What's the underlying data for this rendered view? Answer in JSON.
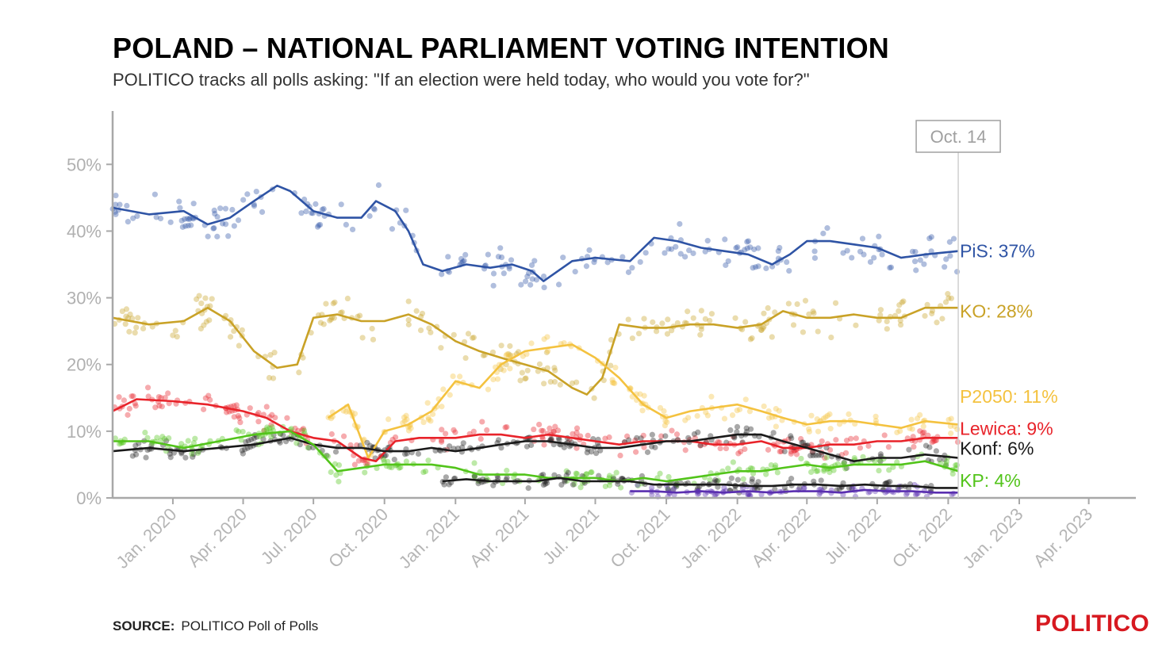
{
  "title": "POLAND – NATIONAL PARLIAMENT VOTING INTENTION",
  "subtitle": "POLITICO tracks all polls asking: \"If an election were held today, who would you vote for?\"",
  "source_label": "SOURCE:",
  "source_text": "POLITICO Poll of Polls",
  "brand": "POLITICO",
  "chart_data": {
    "type": "line",
    "xlabel": "",
    "ylabel": "",
    "ylim": [
      0,
      58
    ],
    "y_ticks": [
      0,
      10,
      20,
      30,
      40,
      50
    ],
    "y_tick_labels": [
      "0%",
      "10%",
      "20%",
      "30%",
      "40%",
      "50%"
    ],
    "x_range": [
      "2019-10-15",
      "2023-06-01"
    ],
    "x_tick_labels": [
      "Jan. 2020",
      "Apr. 2020",
      "Jul. 2020",
      "Oct. 2020",
      "Jan. 2021",
      "Apr. 2021",
      "Jul. 2021",
      "Oct. 2021",
      "Jan. 2022",
      "Apr. 2022",
      "Jul. 2022",
      "Oct. 2022",
      "Jan. 2023",
      "Apr. 2023"
    ],
    "x_tick_dates": [
      "2020-01-01",
      "2020-04-01",
      "2020-07-01",
      "2020-10-01",
      "2021-01-01",
      "2021-04-01",
      "2021-07-01",
      "2021-10-01",
      "2022-01-01",
      "2022-04-01",
      "2022-07-01",
      "2022-10-01",
      "2023-01-01",
      "2023-04-01"
    ],
    "marker_label": "Oct. 14",
    "marker_date": "2022-10-14",
    "grid": false,
    "series": [
      {
        "name": "PiS",
        "end_label": "PiS: 37%",
        "color": "#2f54a5",
        "x": [
          "2019-10-15",
          "2019-12-01",
          "2020-01-15",
          "2020-02-15",
          "2020-03-15",
          "2020-04-15",
          "2020-05-15",
          "2020-06-01",
          "2020-07-01",
          "2020-08-01",
          "2020-09-01",
          "2020-09-20",
          "2020-10-15",
          "2020-11-01",
          "2020-11-20",
          "2020-12-15",
          "2021-01-15",
          "2021-02-15",
          "2021-03-15",
          "2021-04-10",
          "2021-04-25",
          "2021-06-01",
          "2021-07-01",
          "2021-08-15",
          "2021-09-15",
          "2021-10-15",
          "2021-11-15",
          "2021-12-15",
          "2022-01-15",
          "2022-02-15",
          "2022-03-10",
          "2022-04-01",
          "2022-05-01",
          "2022-06-01",
          "2022-07-01",
          "2022-08-01",
          "2022-09-01",
          "2022-10-14"
        ],
        "values": [
          43.5,
          42.5,
          43.0,
          41.0,
          42.0,
          44.5,
          46.8,
          46.0,
          43.0,
          42.0,
          42.0,
          44.5,
          43.0,
          40.0,
          35.0,
          34.0,
          35.0,
          34.5,
          35.0,
          34.0,
          32.5,
          35.5,
          36.0,
          35.5,
          39.0,
          38.5,
          37.5,
          37.0,
          36.5,
          35.0,
          36.5,
          38.5,
          38.5,
          38.0,
          37.5,
          36.0,
          36.5,
          37.0
        ]
      },
      {
        "name": "KO",
        "end_label": "KO: 28%",
        "color": "#c9a227",
        "x": [
          "2019-10-15",
          "2019-12-01",
          "2020-01-15",
          "2020-02-15",
          "2020-03-15",
          "2020-04-15",
          "2020-05-15",
          "2020-06-10",
          "2020-07-01",
          "2020-08-01",
          "2020-09-01",
          "2020-10-01",
          "2020-11-01",
          "2020-12-01",
          "2021-01-01",
          "2021-02-01",
          "2021-03-01",
          "2021-04-01",
          "2021-05-01",
          "2021-06-01",
          "2021-06-20",
          "2021-07-10",
          "2021-08-01",
          "2021-09-01",
          "2021-10-01",
          "2021-11-01",
          "2021-12-01",
          "2022-01-01",
          "2022-02-01",
          "2022-03-01",
          "2022-04-01",
          "2022-05-01",
          "2022-06-01",
          "2022-07-01",
          "2022-08-01",
          "2022-09-01",
          "2022-10-14"
        ],
        "values": [
          27.0,
          26.0,
          26.5,
          28.5,
          26.5,
          22.0,
          19.5,
          20.0,
          27.0,
          27.5,
          26.5,
          26.5,
          27.5,
          26.0,
          23.5,
          22.0,
          21.0,
          20.0,
          19.0,
          16.5,
          15.5,
          18.0,
          26.0,
          25.5,
          25.5,
          26.0,
          26.0,
          25.5,
          26.0,
          28.0,
          27.0,
          27.0,
          27.5,
          27.0,
          27.0,
          28.5,
          28.5
        ]
      },
      {
        "name": "P2050",
        "end_label": "P2050: 11%",
        "color": "#f4c23f",
        "x": [
          "2020-07-20",
          "2020-08-15",
          "2020-09-10",
          "2020-10-01",
          "2020-11-01",
          "2020-12-01",
          "2021-01-01",
          "2021-02-01",
          "2021-03-01",
          "2021-04-01",
          "2021-05-01",
          "2021-06-01",
          "2021-07-01",
          "2021-08-01",
          "2021-09-01",
          "2021-10-01",
          "2021-11-01",
          "2021-12-01",
          "2022-01-01",
          "2022-02-01",
          "2022-03-01",
          "2022-04-01",
          "2022-05-01",
          "2022-06-01",
          "2022-07-01",
          "2022-08-01",
          "2022-09-01",
          "2022-10-14"
        ],
        "values": [
          12.0,
          14.0,
          6.0,
          10.0,
          11.0,
          13.0,
          17.5,
          16.5,
          20.0,
          22.0,
          22.5,
          23.0,
          21.0,
          18.0,
          14.0,
          12.0,
          13.0,
          13.5,
          14.0,
          13.0,
          12.0,
          11.0,
          11.5,
          11.5,
          11.0,
          10.5,
          11.5,
          11.0
        ]
      },
      {
        "name": "Lewica",
        "end_label": "Lewica: 9%",
        "color": "#e8232a",
        "x": [
          "2019-10-15",
          "2019-11-15",
          "2020-01-01",
          "2020-02-15",
          "2020-04-01",
          "2020-05-01",
          "2020-06-01",
          "2020-07-01",
          "2020-08-01",
          "2020-09-01",
          "2020-09-20",
          "2020-10-15",
          "2020-11-15",
          "2021-01-01",
          "2021-02-01",
          "2021-03-01",
          "2021-04-01",
          "2021-05-01",
          "2021-06-01",
          "2021-07-01",
          "2021-08-01",
          "2021-09-01",
          "2021-10-01",
          "2021-11-01",
          "2021-12-01",
          "2022-01-01",
          "2022-02-01",
          "2022-03-01",
          "2022-04-01",
          "2022-05-01",
          "2022-06-01",
          "2022-07-01",
          "2022-08-01",
          "2022-09-01",
          "2022-10-14"
        ],
        "values": [
          13.0,
          14.8,
          14.5,
          14.0,
          13.0,
          12.0,
          10.0,
          9.0,
          8.5,
          6.0,
          5.5,
          8.5,
          9.0,
          9.0,
          9.5,
          9.5,
          9.0,
          9.5,
          9.0,
          8.5,
          8.0,
          8.5,
          8.5,
          8.5,
          8.0,
          8.0,
          8.5,
          7.5,
          7.5,
          8.0,
          8.0,
          8.5,
          8.5,
          9.0,
          9.0
        ]
      },
      {
        "name": "Konf",
        "end_label": "Konf: 6%",
        "color": "#1a1a1a",
        "x": [
          "2019-10-15",
          "2019-12-01",
          "2020-01-15",
          "2020-03-01",
          "2020-04-15",
          "2020-06-01",
          "2020-07-01",
          "2020-08-01",
          "2020-09-01",
          "2020-10-01",
          "2020-11-01",
          "2020-12-01",
          "2021-01-01",
          "2021-02-01",
          "2021-03-01",
          "2021-04-01",
          "2021-05-01",
          "2021-06-01",
          "2021-07-01",
          "2021-08-01",
          "2021-09-01",
          "2021-10-01",
          "2021-11-01",
          "2021-12-01",
          "2022-01-01",
          "2022-02-01",
          "2022-03-01",
          "2022-04-01",
          "2022-05-01",
          "2022-06-01",
          "2022-07-01",
          "2022-08-01",
          "2022-09-01",
          "2022-10-14"
        ],
        "values": [
          7.0,
          7.5,
          7.0,
          7.5,
          8.0,
          9.0,
          8.0,
          7.5,
          7.5,
          7.0,
          7.0,
          7.5,
          7.0,
          7.5,
          8.0,
          8.5,
          8.5,
          8.0,
          7.5,
          7.5,
          8.0,
          8.5,
          8.5,
          9.0,
          9.5,
          9.5,
          8.5,
          7.5,
          6.5,
          5.5,
          6.0,
          6.0,
          6.5,
          6.0
        ]
      },
      {
        "name": "KP",
        "end_label": "KP: 4%",
        "color": "#52c41a",
        "x": [
          "2019-10-15",
          "2019-12-01",
          "2020-01-15",
          "2020-03-01",
          "2020-04-15",
          "2020-06-01",
          "2020-07-01",
          "2020-08-01",
          "2020-09-01",
          "2020-10-01",
          "2020-11-01",
          "2020-12-01",
          "2021-01-01",
          "2021-02-01",
          "2021-03-01",
          "2021-04-01",
          "2021-05-01",
          "2021-06-01",
          "2021-07-01",
          "2021-08-01",
          "2021-09-01",
          "2021-10-01",
          "2021-11-01",
          "2021-12-01",
          "2022-01-01",
          "2022-02-01",
          "2022-03-01",
          "2022-04-01",
          "2022-05-01",
          "2022-06-01",
          "2022-07-01",
          "2022-08-01",
          "2022-09-01",
          "2022-10-14"
        ],
        "values": [
          8.5,
          8.5,
          7.5,
          8.5,
          9.5,
          10.0,
          8.0,
          4.0,
          4.5,
          5.0,
          5.0,
          5.0,
          4.5,
          3.5,
          3.5,
          3.5,
          3.0,
          3.0,
          3.0,
          2.5,
          3.0,
          2.5,
          3.0,
          3.5,
          4.0,
          4.0,
          4.5,
          5.0,
          4.5,
          5.0,
          5.0,
          5.0,
          5.5,
          4.0
        ]
      },
      {
        "name": "",
        "end_label": "",
        "color": "#1a1a1a",
        "x": [
          "2020-12-15",
          "2021-01-15",
          "2021-02-15",
          "2021-03-15",
          "2021-04-15",
          "2021-05-15",
          "2021-06-15",
          "2021-07-15",
          "2021-08-15",
          "2021-09-15",
          "2021-10-15",
          "2021-11-15",
          "2021-12-15",
          "2022-01-15",
          "2022-02-15",
          "2022-03-15",
          "2022-04-15",
          "2022-05-15",
          "2022-06-15",
          "2022-07-15",
          "2022-08-15",
          "2022-09-15",
          "2022-10-14"
        ],
        "values": [
          2.5,
          2.8,
          2.5,
          2.5,
          2.5,
          3.0,
          2.5,
          2.5,
          2.5,
          2.0,
          2.0,
          2.0,
          2.0,
          1.8,
          1.8,
          2.0,
          2.0,
          1.8,
          2.0,
          1.8,
          1.8,
          1.5,
          1.5
        ]
      },
      {
        "name": "",
        "end_label": "",
        "color": "#5a2fb0",
        "x": [
          "2021-08-15",
          "2021-09-15",
          "2021-10-15",
          "2021-11-15",
          "2021-12-15",
          "2022-01-15",
          "2022-02-15",
          "2022-03-15",
          "2022-04-15",
          "2022-05-15",
          "2022-06-15",
          "2022-07-15",
          "2022-08-15",
          "2022-09-15",
          "2022-10-14"
        ],
        "values": [
          1.0,
          1.0,
          0.8,
          1.0,
          0.8,
          1.0,
          0.8,
          1.0,
          1.0,
          0.8,
          1.2,
          1.0,
          1.0,
          0.8,
          0.8
        ]
      }
    ]
  }
}
